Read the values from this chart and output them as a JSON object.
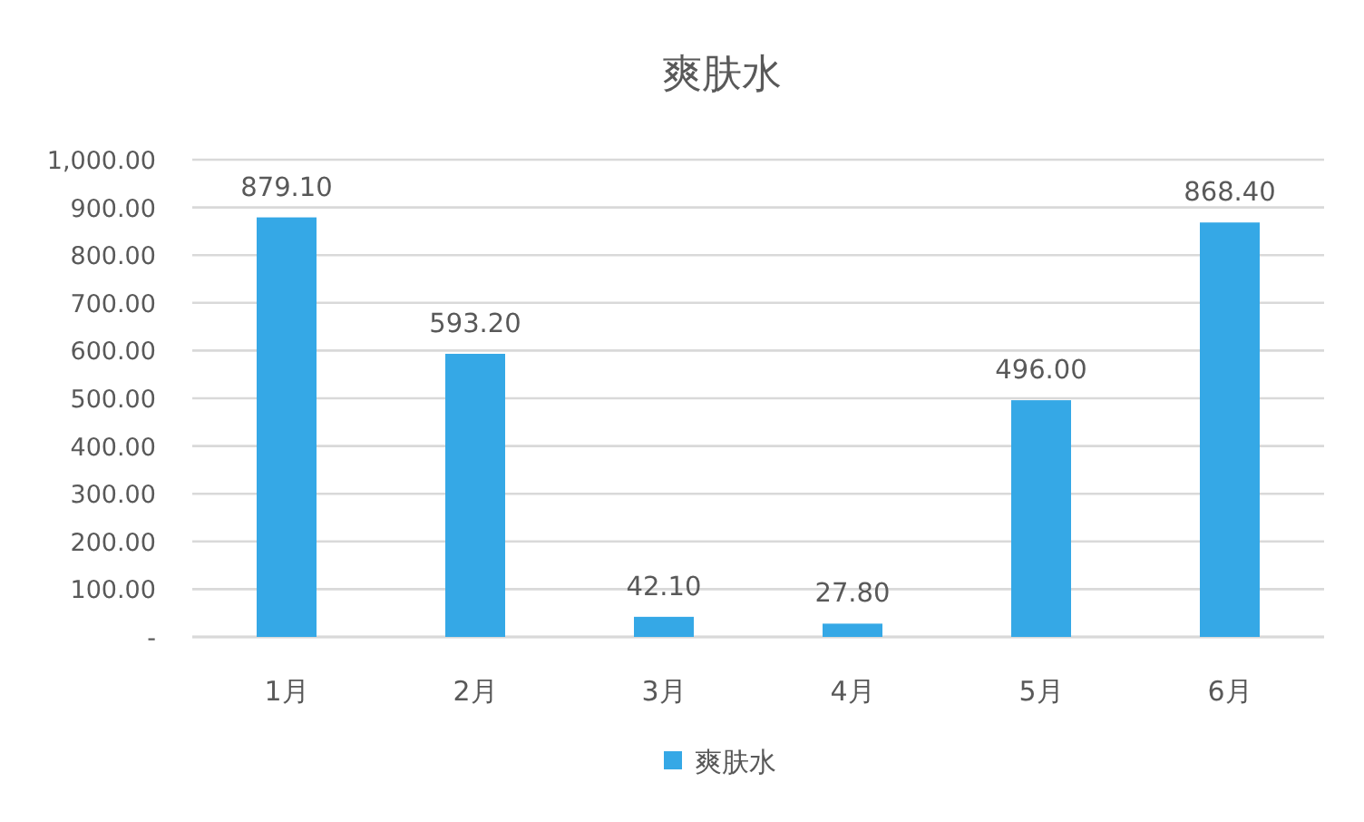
{
  "chart_data": {
    "type": "bar",
    "title": "爽肤水",
    "categories": [
      "1月",
      "2月",
      "3月",
      "4月",
      "5月",
      "6月"
    ],
    "series": [
      {
        "name": "爽肤水",
        "color": "#35a8e6",
        "values": [
          879.1,
          593.2,
          42.1,
          27.8,
          496.0,
          868.4
        ],
        "value_labels": [
          "879.10",
          "593.20",
          "42.10",
          "27.80",
          "496.00",
          "868.40"
        ]
      }
    ],
    "ylim": [
      0,
      1000
    ],
    "yticks": [
      {
        "value": 0,
        "label": "-"
      },
      {
        "value": 100,
        "label": "100.00"
      },
      {
        "value": 200,
        "label": "200.00"
      },
      {
        "value": 300,
        "label": "300.00"
      },
      {
        "value": 400,
        "label": "400.00"
      },
      {
        "value": 500,
        "label": "500.00"
      },
      {
        "value": 600,
        "label": "600.00"
      },
      {
        "value": 700,
        "label": "700.00"
      },
      {
        "value": 800,
        "label": "800.00"
      },
      {
        "value": 900,
        "label": "900.00"
      },
      {
        "value": 1000,
        "label": "1,000.00"
      }
    ],
    "grid": "y",
    "legend": "bottom"
  }
}
